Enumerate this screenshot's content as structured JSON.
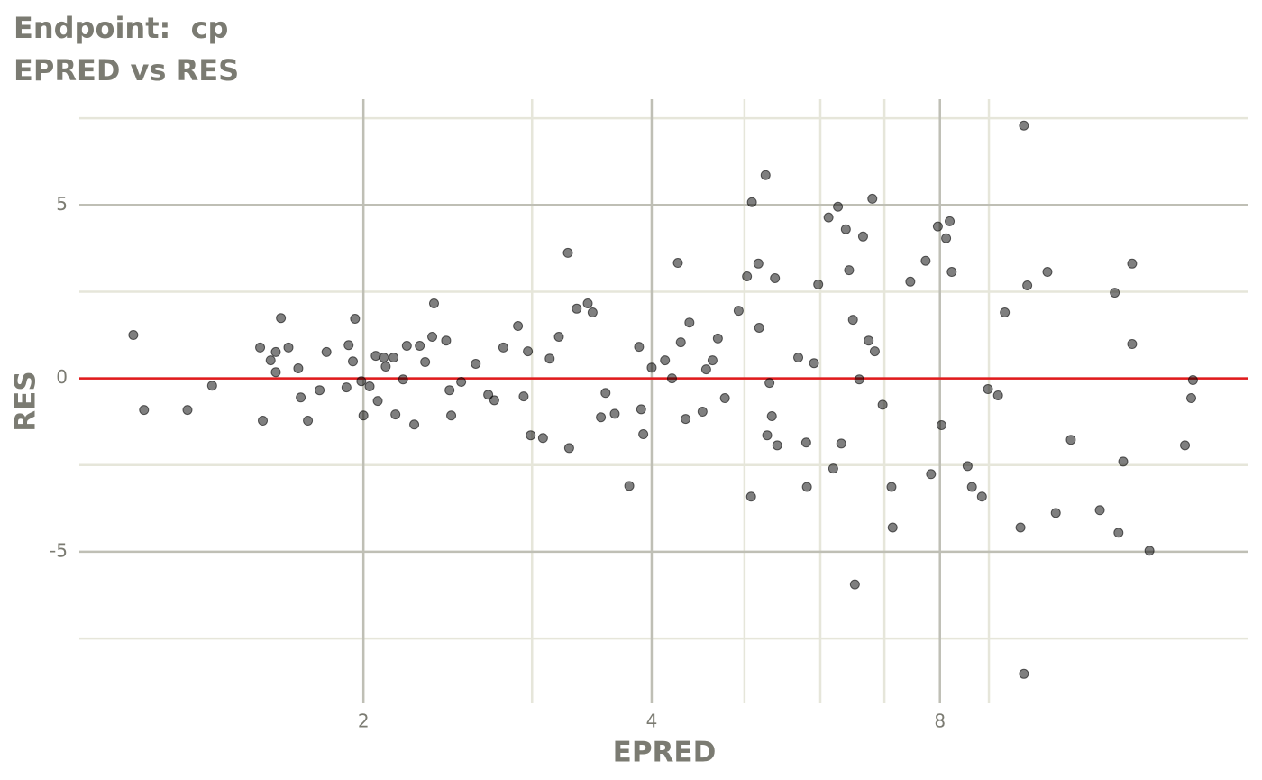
{
  "chart_data": {
    "type": "scatter",
    "title": "Endpoint:  cp",
    "subtitle": "EPRED vs RES",
    "xlabel": "EPRED",
    "ylabel": "RES",
    "xscale": "log2",
    "xlim": [
      1.01,
      16.8
    ],
    "xticks": [
      2,
      4,
      8
    ],
    "xminor": [
      3,
      5,
      6,
      7,
      9
    ],
    "ylim": [
      -9.37,
      8.05
    ],
    "yticks": [
      -5,
      0,
      5
    ],
    "yminor": [
      -7.5,
      -2.5,
      2.5,
      7.5
    ],
    "grid": true,
    "hline": 0,
    "hline_color": "#e31a1c",
    "color": "#000000",
    "series": [
      {
        "x": [
          1.15,
          1.18,
          1.31,
          1.39,
          1.56,
          1.57,
          1.6,
          1.62,
          1.62,
          1.64,
          1.67,
          1.71,
          1.72,
          1.75,
          1.8,
          1.83,
          1.92,
          1.93,
          1.95,
          1.96,
          1.99,
          2.0,
          2.03,
          2.06,
          2.07,
          2.1,
          2.11,
          2.15,
          2.16,
          2.2,
          2.22,
          2.26,
          2.29,
          2.32,
          2.36,
          2.37,
          2.44,
          2.46,
          2.47,
          2.53,
          2.62,
          2.7,
          2.74,
          2.8,
          2.9,
          2.94,
          2.97,
          2.99,
          3.08,
          3.13,
          3.2,
          3.27,
          3.28,
          3.34,
          3.43,
          3.47,
          3.54,
          3.58,
          3.66,
          3.79,
          3.88,
          3.9,
          3.92,
          4.0,
          4.13,
          4.2,
          4.26,
          4.29,
          4.34,
          4.38,
          4.52,
          4.56,
          4.63,
          4.69,
          4.77,
          4.93,
          5.03,
          5.08,
          5.09,
          5.17,
          5.18,
          5.26,
          5.28,
          5.31,
          5.34,
          5.38,
          5.41,
          5.69,
          5.8,
          5.81,
          5.91,
          5.97,
          6.12,
          6.19,
          6.26,
          6.31,
          6.38,
          6.43,
          6.49,
          6.52,
          6.59,
          6.65,
          6.74,
          6.8,
          6.84,
          6.97,
          7.12,
          7.14,
          7.45,
          7.73,
          7.83,
          7.96,
          8.03,
          8.12,
          8.19,
          8.23,
          8.55,
          8.64,
          8.85,
          8.98,
          9.2,
          9.35,
          9.79,
          9.79,
          9.71,
          9.87,
          10.36,
          10.57,
          10.96,
          11.75,
          12.18,
          12.29,
          12.43,
          12.7,
          12.7,
          13.24,
          14.42,
          14.64,
          14.7
        ],
        "values": [
          1.25,
          -0.91,
          -0.91,
          -0.21,
          0.89,
          -1.22,
          0.52,
          0.76,
          0.18,
          1.74,
          0.89,
          0.29,
          -0.55,
          -1.22,
          -0.34,
          0.76,
          -0.26,
          0.96,
          0.49,
          1.72,
          -0.08,
          -1.07,
          -0.23,
          0.65,
          -0.65,
          0.6,
          0.34,
          0.6,
          -1.04,
          -0.03,
          0.94,
          -1.33,
          0.94,
          0.47,
          1.2,
          2.16,
          1.09,
          -0.34,
          -1.07,
          -0.1,
          0.42,
          -0.47,
          -0.63,
          0.89,
          1.51,
          -0.52,
          0.78,
          -1.64,
          -1.72,
          0.57,
          1.2,
          3.62,
          -2.01,
          2.01,
          2.16,
          1.9,
          -1.12,
          -0.42,
          -1.02,
          -3.1,
          0.91,
          -0.89,
          -1.61,
          0.31,
          0.52,
          0.0,
          3.33,
          1.04,
          -1.17,
          1.61,
          -0.96,
          0.26,
          0.52,
          1.15,
          -0.57,
          1.95,
          2.94,
          -3.41,
          5.08,
          3.31,
          1.46,
          5.86,
          -1.64,
          -0.13,
          -1.09,
          2.89,
          -1.93,
          0.6,
          -1.85,
          -3.13,
          0.44,
          2.71,
          4.64,
          -2.6,
          4.95,
          -1.88,
          4.3,
          3.12,
          1.69,
          -5.94,
          -0.03,
          4.09,
          1.09,
          5.18,
          0.78,
          -0.76,
          -3.13,
          -4.3,
          2.79,
          3.39,
          -2.76,
          4.38,
          -1.35,
          4.04,
          4.53,
          3.07,
          -2.53,
          -3.13,
          -3.41,
          -0.31,
          -0.49,
          1.9,
          7.29,
          -8.52,
          -4.3,
          2.68,
          3.07,
          -3.88,
          -1.77,
          -3.8,
          2.47,
          -4.45,
          -2.4,
          3.31,
          0.99,
          -4.97,
          -1.93,
          -0.57,
          -0.05
        ]
      }
    ]
  }
}
